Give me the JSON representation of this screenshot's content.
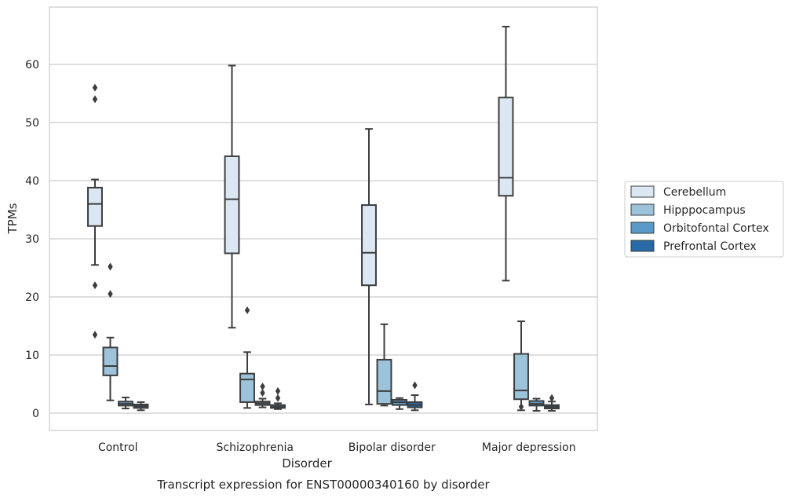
{
  "chart_data": {
    "type": "boxplot",
    "title": "",
    "caption": "Transcript expression for ENST00000340160 by disorder",
    "xlabel": "Disorder",
    "ylabel": "TPMs",
    "ylim": [
      -3,
      69
    ],
    "yticks": [
      0,
      10,
      20,
      30,
      40,
      50,
      60
    ],
    "grid": "horizontal",
    "legend_position": "right",
    "categories": [
      "Control",
      "Schizophrenia",
      "Bipolar disorder",
      "Major depression"
    ],
    "series": [
      {
        "name": "Cerebellum",
        "color": "#dbe7f3",
        "boxes": [
          {
            "whislo": 25.5,
            "q1": 32.2,
            "med": 36.0,
            "q3": 38.8,
            "whishi": 40.2,
            "fliers": [
              56.0,
              54.0,
              22.0,
              13.5
            ]
          },
          {
            "whislo": 14.7,
            "q1": 27.5,
            "med": 36.8,
            "q3": 44.2,
            "whishi": 59.8,
            "fliers": []
          },
          {
            "whislo": 1.5,
            "q1": 22.0,
            "med": 27.6,
            "q3": 35.8,
            "whishi": 48.9,
            "fliers": []
          },
          {
            "whislo": 22.8,
            "q1": 37.4,
            "med": 40.5,
            "q3": 54.3,
            "whishi": 66.5,
            "fliers": []
          }
        ]
      },
      {
        "name": "Hipppocampus",
        "color": "#9cc3da",
        "boxes": [
          {
            "whislo": 2.2,
            "q1": 6.5,
            "med": 8.1,
            "q3": 11.3,
            "whishi": 13.0,
            "fliers": [
              25.2,
              20.5
            ]
          },
          {
            "whislo": 0.9,
            "q1": 1.9,
            "med": 5.8,
            "q3": 6.8,
            "whishi": 10.5,
            "fliers": [
              17.7
            ]
          },
          {
            "whislo": 1.3,
            "q1": 1.6,
            "med": 3.8,
            "q3": 9.2,
            "whishi": 15.3,
            "fliers": []
          },
          {
            "whislo": 0.5,
            "q1": 2.4,
            "med": 3.9,
            "q3": 10.2,
            "whishi": 15.8,
            "fliers": [
              1.1
            ]
          }
        ]
      },
      {
        "name": "Orbitofontal Cortex",
        "color": "#5a9ac8",
        "boxes": [
          {
            "whislo": 0.8,
            "q1": 1.3,
            "med": 1.6,
            "q3": 2.0,
            "whishi": 2.7,
            "fliers": []
          },
          {
            "whislo": 1.0,
            "q1": 1.4,
            "med": 1.7,
            "q3": 2.0,
            "whishi": 2.5,
            "fliers": [
              4.6,
              3.5
            ]
          },
          {
            "whislo": 0.7,
            "q1": 1.4,
            "med": 1.9,
            "q3": 2.3,
            "whishi": 2.6,
            "fliers": []
          },
          {
            "whislo": 0.4,
            "q1": 1.3,
            "med": 1.6,
            "q3": 2.1,
            "whishi": 2.5,
            "fliers": []
          }
        ]
      },
      {
        "name": "Prefrontal Cortex",
        "color": "#2869a8",
        "boxes": [
          {
            "whislo": 0.5,
            "q1": 0.9,
            "med": 1.2,
            "q3": 1.5,
            "whishi": 1.9,
            "fliers": []
          },
          {
            "whislo": 0.7,
            "q1": 0.9,
            "med": 1.1,
            "q3": 1.4,
            "whishi": 1.7,
            "fliers": [
              3.8,
              2.6
            ]
          },
          {
            "whislo": 0.5,
            "q1": 1.0,
            "med": 1.4,
            "q3": 1.9,
            "whishi": 3.1,
            "fliers": [
              4.8
            ]
          },
          {
            "whislo": 0.4,
            "q1": 0.8,
            "med": 1.1,
            "q3": 1.4,
            "whishi": 2.0,
            "fliers": [
              2.6
            ]
          }
        ]
      }
    ]
  }
}
